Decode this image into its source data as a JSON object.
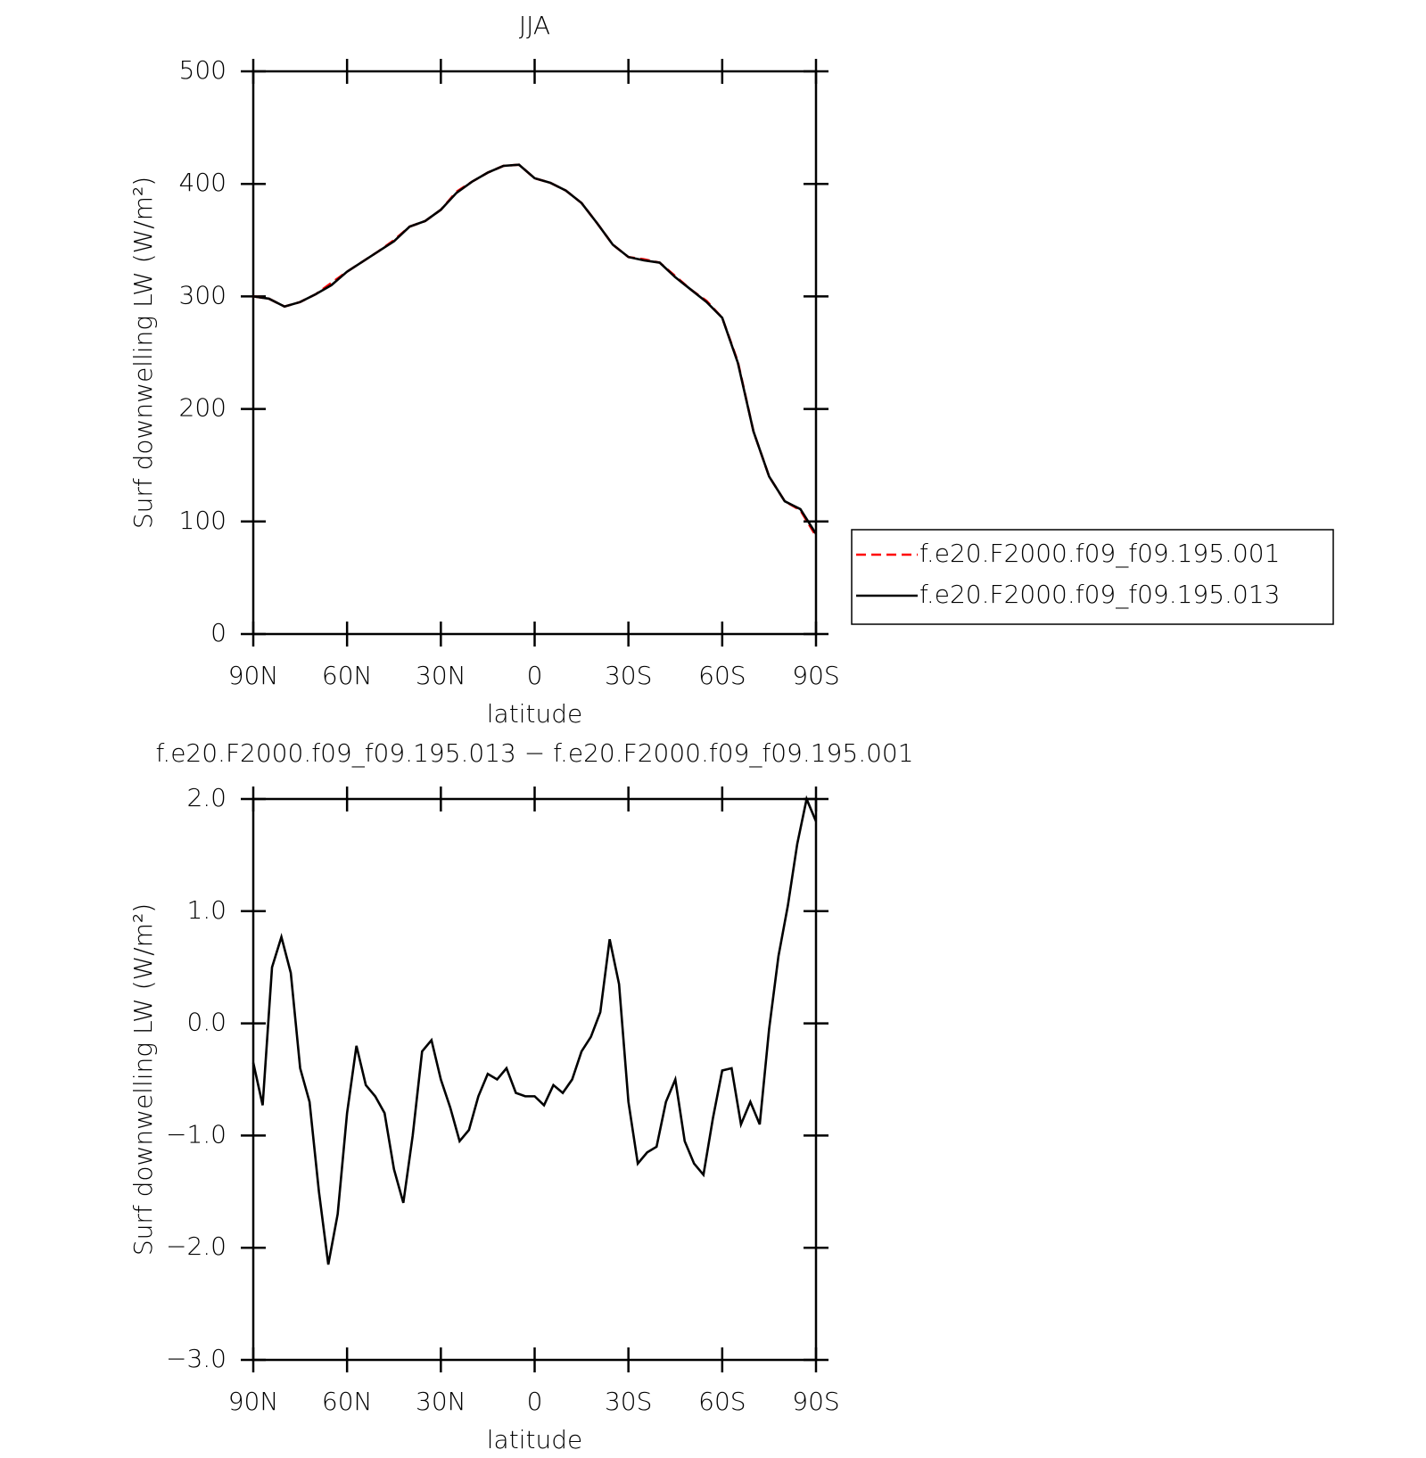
{
  "chart_data": [
    {
      "type": "line",
      "title": "JJA",
      "xlabel": "latitude",
      "ylabel": "Surf downwelling LW (W/m²)",
      "x": [
        90,
        85,
        80,
        75,
        70,
        65,
        60,
        55,
        50,
        45,
        40,
        35,
        30,
        25,
        20,
        15,
        10,
        5,
        0,
        -5,
        -10,
        -15,
        -20,
        -25,
        -30,
        -35,
        -40,
        -45,
        -50,
        -55,
        -60,
        -65,
        -70,
        -75,
        -80,
        -85,
        -90
      ],
      "series": [
        {
          "name": "f.e20.F2000.f09_f09.195.001",
          "color": "#ff0000",
          "dash": true,
          "values": [
            300,
            298,
            291,
            295,
            302,
            312,
            322,
            331,
            340,
            350,
            362,
            367,
            377,
            393,
            402,
            410,
            416,
            417,
            405,
            401,
            394,
            383,
            365,
            346,
            335,
            333,
            330,
            318,
            306,
            296,
            281,
            242,
            180,
            140,
            118,
            110,
            87
          ]
        },
        {
          "name": "f.e20.F2000.f09_f09.195.013",
          "color": "#000000",
          "dash": false,
          "values": [
            300,
            298,
            291,
            295,
            302,
            310,
            322,
            331,
            340,
            349,
            362,
            367,
            377,
            392,
            402,
            410,
            416,
            417,
            405,
            401,
            394,
            383,
            365,
            346,
            335,
            332,
            330,
            317,
            306,
            295,
            281,
            241,
            180,
            140,
            118,
            111,
            89
          ]
        }
      ],
      "xlim": [
        90,
        -90
      ],
      "xticks": [
        {
          "value": 90,
          "label": "90N"
        },
        {
          "value": 60,
          "label": "60N"
        },
        {
          "value": 30,
          "label": "30N"
        },
        0,
        {
          "value": -30,
          "label": "30S"
        },
        {
          "value": -60,
          "label": "60S"
        },
        {
          "value": -90,
          "label": "90S"
        }
      ],
      "ylim": [
        0,
        500
      ],
      "yticks": [
        0,
        100,
        200,
        300,
        400,
        500
      ],
      "legend": "right"
    },
    {
      "type": "line",
      "title": "f.e20.F2000.f09_f09.195.013 − f.e20.F2000.f09_f09.195.001",
      "xlabel": "latitude",
      "ylabel": "Surf downwelling LW (W/m²)",
      "x": [
        90,
        87,
        84,
        81,
        78,
        75,
        72,
        69,
        66,
        63,
        60,
        57,
        54,
        51,
        48,
        45,
        42,
        39,
        36,
        33,
        30,
        27,
        24,
        21,
        18,
        15,
        12,
        9,
        6,
        3,
        0,
        -3,
        -6,
        -9,
        -12,
        -15,
        -18,
        -21,
        -24,
        -27,
        -30,
        -33,
        -36,
        -39,
        -42,
        -45,
        -48,
        -51,
        -54,
        -57,
        -60,
        -63,
        -66,
        -69,
        -72,
        -75,
        -78,
        -81,
        -84,
        -87,
        -90
      ],
      "series": [
        {
          "color": "#000000",
          "dash": false,
          "values": [
            -0.35,
            -0.73,
            0.5,
            0.77,
            0.45,
            -0.4,
            -0.7,
            -1.5,
            -2.15,
            -1.7,
            -0.8,
            -0.2,
            -0.55,
            -0.65,
            -0.8,
            -1.3,
            -1.6,
            -1.0,
            -0.25,
            -0.15,
            -0.5,
            -0.75,
            -1.05,
            -0.95,
            -0.65,
            -0.45,
            -0.5,
            -0.4,
            -0.62,
            -0.65,
            -0.65,
            -0.73,
            -0.55,
            -0.62,
            -0.5,
            -0.25,
            -0.12,
            0.1,
            0.75,
            0.35,
            -0.7,
            -1.25,
            -1.15,
            -1.1,
            -0.7,
            -0.5,
            -1.05,
            -1.25,
            -1.35,
            -0.85,
            -0.42,
            -0.4,
            -0.9,
            -0.7,
            -0.9,
            -0.05,
            0.6,
            1.05,
            1.6,
            2.0,
            1.8
          ]
        }
      ],
      "xlim": [
        90,
        -90
      ],
      "xticks": [
        {
          "value": 90,
          "label": "90N"
        },
        {
          "value": 60,
          "label": "60N"
        },
        {
          "value": 30,
          "label": "30N"
        },
        0,
        {
          "value": -30,
          "label": "30S"
        },
        {
          "value": -60,
          "label": "60S"
        },
        {
          "value": -90,
          "label": "90S"
        }
      ],
      "ylim": [
        -3,
        2
      ],
      "yticks": [
        {
          "value": -3,
          "label": "−3.0"
        },
        {
          "value": -2,
          "label": "−2.0"
        },
        {
          "value": -1,
          "label": "−1.0"
        },
        {
          "value": 0,
          "label": "0.0"
        },
        {
          "value": 1,
          "label": "1.0"
        },
        {
          "value": 2,
          "label": "2.0"
        }
      ]
    }
  ]
}
